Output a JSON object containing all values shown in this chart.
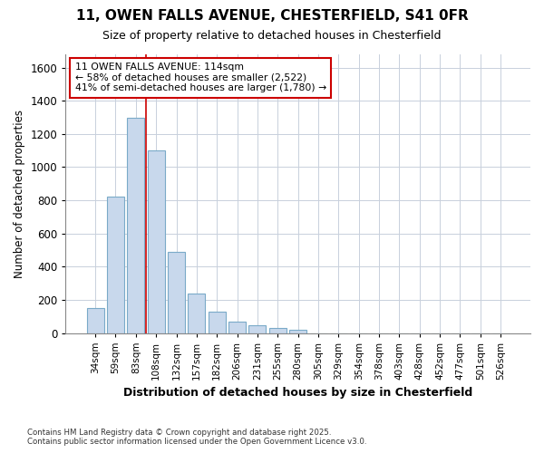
{
  "title_line1": "11, OWEN FALLS AVENUE, CHESTERFIELD, S41 0FR",
  "title_line2": "Size of property relative to detached houses in Chesterfield",
  "xlabel": "Distribution of detached houses by size in Chesterfield",
  "ylabel": "Number of detached properties",
  "categories": [
    "34sqm",
    "59sqm",
    "83sqm",
    "108sqm",
    "132sqm",
    "157sqm",
    "182sqm",
    "206sqm",
    "231sqm",
    "255sqm",
    "280sqm",
    "305sqm",
    "329sqm",
    "354sqm",
    "378sqm",
    "403sqm",
    "428sqm",
    "452sqm",
    "477sqm",
    "501sqm",
    "526sqm"
  ],
  "values": [
    148,
    820,
    1300,
    1100,
    490,
    235,
    130,
    70,
    48,
    28,
    18,
    0,
    0,
    0,
    0,
    0,
    0,
    0,
    0,
    0,
    0
  ],
  "bar_color": "#c8d8ec",
  "bar_edge_color": "#7aaac8",
  "grid_color": "#c8d0dc",
  "background_color": "#ffffff",
  "fig_background_color": "#ffffff",
  "red_line_x": 2.5,
  "annotation_text": "11 OWEN FALLS AVENUE: 114sqm\n← 58% of detached houses are smaller (2,522)\n41% of semi-detached houses are larger (1,780) →",
  "annotation_box_color": "#cc0000",
  "ylim": [
    0,
    1680
  ],
  "yticks": [
    0,
    200,
    400,
    600,
    800,
    1000,
    1200,
    1400,
    1600
  ],
  "footer_line1": "Contains HM Land Registry data © Crown copyright and database right 2025.",
  "footer_line2": "Contains public sector information licensed under the Open Government Licence v3.0."
}
